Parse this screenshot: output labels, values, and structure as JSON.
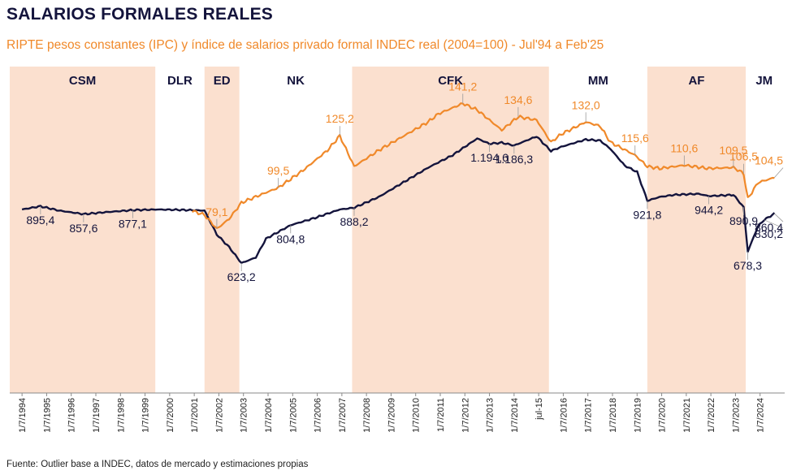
{
  "title": "SALARIOS FORMALES REALES",
  "subtitle": "RIPTE pesos constantes (IPC) y índice de salarios privado formal INDEC real (2004=100)  - Jul'94 a Feb'25",
  "source": "Fuente: Outlier base a INDEC, datos de mercado y estimaciones propias",
  "colors": {
    "navy": "#14143c",
    "orange": "#f0892a",
    "shade": "#fbe0cf"
  },
  "chart_data": {
    "type": "line",
    "x_range": [
      "1994-01",
      "2025-06"
    ],
    "y_range": [
      600,
      1500
    ],
    "grid": false,
    "legend": "none",
    "x_tick_labels": [
      "1/7/1994",
      "1/7/1995",
      "1/7/1996",
      "1/7/1997",
      "1/7/1998",
      "1/7/1999",
      "1/7/2000",
      "1/7/2001",
      "1/7/2002",
      "1/7/2003",
      "1/7/2004",
      "1/7/2005",
      "1/7/2006",
      "1/7/2007",
      "1/7/2008",
      "1/7/2009",
      "1/7/2010",
      "1/7/2011",
      "1/7/2012",
      "1/7/2013",
      "1/7/2014",
      "jul-15",
      "1/7/2016",
      "1/7/2017",
      "1/7/2018",
      "1/7/2019",
      "1/7/2020",
      "1/7/2021",
      "1/7/2022",
      "1/7/2023",
      "1/7/2024"
    ],
    "periods": [
      {
        "label": "CSM",
        "start": "1994-01",
        "end": "1999-12",
        "shaded": true
      },
      {
        "label": "DLR",
        "start": "1999-12",
        "end": "2001-12",
        "shaded": false
      },
      {
        "label": "ED",
        "start": "2001-12",
        "end": "2003-05",
        "shaded": true
      },
      {
        "label": "NK",
        "start": "2003-05",
        "end": "2007-12",
        "shaded": false
      },
      {
        "label": "CFK",
        "start": "2007-12",
        "end": "2015-12",
        "shaded": true
      },
      {
        "label": "MM",
        "start": "2015-12",
        "end": "2019-12",
        "shaded": false
      },
      {
        "label": "AF",
        "start": "2019-12",
        "end": "2023-12",
        "shaded": true
      },
      {
        "label": "JM",
        "start": "2023-12",
        "end": "2025-06",
        "shaded": false
      }
    ],
    "series": [
      {
        "color": "#14143c",
        "points": [
          [
            "1994-07",
            880
          ],
          [
            "1995-04",
            895.4
          ],
          [
            "1996-01",
            875
          ],
          [
            "1997-01",
            857.6
          ],
          [
            "1998-01",
            868
          ],
          [
            "1999-01",
            877.1
          ],
          [
            "2000-01",
            880
          ],
          [
            "2001-01",
            878
          ],
          [
            "2001-12",
            875
          ],
          [
            "2002-06",
            760
          ],
          [
            "2002-12",
            700
          ],
          [
            "2003-06",
            623.2
          ],
          [
            "2004-01",
            650
          ],
          [
            "2004-06",
            740
          ],
          [
            "2005-06",
            804.8
          ],
          [
            "2006-06",
            840
          ],
          [
            "2007-06",
            880
          ],
          [
            "2008-01",
            888.2
          ],
          [
            "2009-01",
            940
          ],
          [
            "2010-01",
            1010
          ],
          [
            "2011-01",
            1080
          ],
          [
            "2012-01",
            1140
          ],
          [
            "2013-01",
            1220
          ],
          [
            "2013-07",
            1194.6
          ],
          [
            "2014-01",
            1200
          ],
          [
            "2014-07",
            1186.3
          ],
          [
            "2015-06",
            1230
          ],
          [
            "2016-01",
            1160
          ],
          [
            "2016-06",
            1180
          ],
          [
            "2017-06",
            1215
          ],
          [
            "2018-01",
            1210
          ],
          [
            "2018-06",
            1170
          ],
          [
            "2019-01",
            1090
          ],
          [
            "2019-07",
            1060
          ],
          [
            "2019-12",
            921.8
          ],
          [
            "2020-06",
            940
          ],
          [
            "2021-01",
            950
          ],
          [
            "2022-01",
            955
          ],
          [
            "2022-06",
            944.2
          ],
          [
            "2023-06",
            950
          ],
          [
            "2023-11",
            890.9
          ],
          [
            "2024-01",
            678.3
          ],
          [
            "2024-06",
            800
          ],
          [
            "2024-09",
            830.2
          ],
          [
            "2025-02",
            860.4
          ]
        ],
        "labels": [
          {
            "text": "895,4",
            "at": [
              "1995-04",
              895.4
            ]
          },
          {
            "text": "857,6",
            "at": [
              "1997-01",
              857.6
            ]
          },
          {
            "text": "877,1",
            "at": [
              "1999-01",
              877.1
            ]
          },
          {
            "text": "623,2",
            "at": [
              "2003-06",
              623.2
            ]
          },
          {
            "text": "804,8",
            "at": [
              "2005-06",
              804.8
            ]
          },
          {
            "text": "888,2",
            "at": [
              "2008-01",
              888.2
            ]
          },
          {
            "text": "1.194,6",
            "at": [
              "2013-07",
              1194.6
            ]
          },
          {
            "text": "1.186,3",
            "at": [
              "2014-07",
              1186.3
            ]
          },
          {
            "text": "921,8",
            "at": [
              "2019-12",
              921.8
            ]
          },
          {
            "text": "944,2",
            "at": [
              "2022-06",
              944.2
            ]
          },
          {
            "text": "890,9",
            "at": [
              "2023-11",
              890.9
            ]
          },
          {
            "text": "678,3",
            "at": [
              "2024-01",
              678.3
            ]
          },
          {
            "text": "830,2",
            "at": [
              "2024-09",
              830.2
            ]
          },
          {
            "text": "860,4",
            "at": [
              "2025-02",
              860.4
            ]
          }
        ]
      },
      {
        "color": "#f0892a",
        "points": [
          [
            "2001-06",
            88
          ],
          [
            "2001-12",
            86
          ],
          [
            "2002-06",
            79.1
          ],
          [
            "2002-12",
            84
          ],
          [
            "2003-06",
            92
          ],
          [
            "2004-01",
            95
          ],
          [
            "2004-12",
            99.5
          ],
          [
            "2005-12",
            108
          ],
          [
            "2006-12",
            118
          ],
          [
            "2007-06",
            125.2
          ],
          [
            "2008-01",
            110
          ],
          [
            "2009-01",
            118
          ],
          [
            "2010-01",
            125
          ],
          [
            "2011-01",
            132
          ],
          [
            "2011-06",
            136
          ],
          [
            "2012-06",
            141.2
          ],
          [
            "2013-01",
            138
          ],
          [
            "2014-01",
            128
          ],
          [
            "2014-09",
            134.6
          ],
          [
            "2015-06",
            133
          ],
          [
            "2016-01",
            122
          ],
          [
            "2016-06",
            126
          ],
          [
            "2017-06",
            132.0
          ],
          [
            "2018-01",
            130
          ],
          [
            "2018-06",
            122
          ],
          [
            "2019-06",
            115.6
          ],
          [
            "2019-12",
            110
          ],
          [
            "2020-06",
            109
          ],
          [
            "2021-06",
            110.6
          ],
          [
            "2022-06",
            109
          ],
          [
            "2023-06",
            109.5
          ],
          [
            "2023-11",
            106.5
          ],
          [
            "2024-01",
            94
          ],
          [
            "2024-06",
            102
          ],
          [
            "2025-02",
            104.5
          ]
        ],
        "labels": [
          {
            "text": "79,1",
            "at": [
              "2002-06",
              79.1
            ]
          },
          {
            "text": "99,5",
            "at": [
              "2004-12",
              99.5
            ]
          },
          {
            "text": "125,2",
            "at": [
              "2007-06",
              125.2
            ]
          },
          {
            "text": "141,2",
            "at": [
              "2012-06",
              141.2
            ]
          },
          {
            "text": "134,6",
            "at": [
              "2014-09",
              134.6
            ]
          },
          {
            "text": "132,0",
            "at": [
              "2017-06",
              132.0
            ]
          },
          {
            "text": "115,6",
            "at": [
              "2019-06",
              115.6
            ]
          },
          {
            "text": "110,6",
            "at": [
              "2021-06",
              110.6
            ]
          },
          {
            "text": "109,5",
            "at": [
              "2023-06",
              109.5
            ]
          },
          {
            "text": "106,5",
            "at": [
              "2023-11",
              106.5
            ]
          },
          {
            "text": "104,5",
            "at": [
              "2025-02",
              104.5
            ]
          }
        ]
      }
    ]
  }
}
